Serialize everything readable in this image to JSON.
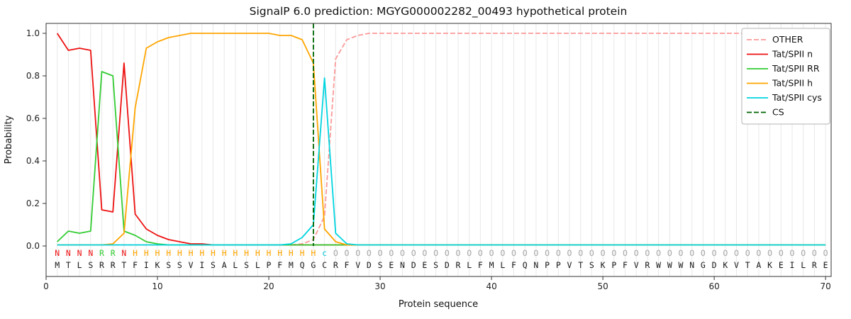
{
  "chart_data": {
    "type": "line",
    "title": "SignalP 6.0 prediction: MGYG000002282_00493 hypothetical protein",
    "xlabel": "Protein sequence",
    "ylabel": "Probability",
    "xlim": [
      0,
      70.5
    ],
    "ylim": [
      0.0,
      1.0
    ],
    "x_ticks": [
      0,
      10,
      20,
      30,
      40,
      50,
      60,
      70
    ],
    "y_ticks": [
      0.0,
      0.2,
      0.4,
      0.6,
      0.8,
      1.0
    ],
    "grid": "vertical-line-per-residue",
    "legend_position": "upper right",
    "cs_position": 24,
    "cs_line": {
      "name": "CS",
      "color": "#006400",
      "dash": "7 3"
    },
    "series": [
      {
        "name": "OTHER",
        "color": "#fb9a99",
        "dash": "7 3",
        "values": [
          0.005,
          0.005,
          0.005,
          0.005,
          0.005,
          0.005,
          0.005,
          0.005,
          0.005,
          0.005,
          0.005,
          0.005,
          0.005,
          0.005,
          0.005,
          0.005,
          0.005,
          0.005,
          0.005,
          0.005,
          0.005,
          0.005,
          0.01,
          0.03,
          0.14,
          0.88,
          0.97,
          0.99,
          1.0,
          1.0,
          1.0,
          1.0,
          1.0,
          1.0,
          1.0,
          1.0,
          1.0,
          1.0,
          1.0,
          1.0,
          1.0,
          1.0,
          1.0,
          1.0,
          1.0,
          1.0,
          1.0,
          1.0,
          1.0,
          1.0,
          1.0,
          1.0,
          1.0,
          1.0,
          1.0,
          1.0,
          1.0,
          1.0,
          1.0,
          1.0,
          1.0,
          1.0,
          1.0,
          1.0,
          1.0,
          1.0,
          1.0,
          1.0,
          1.0,
          1.0
        ]
      },
      {
        "name": "Tat/SPII n",
        "color": "#ee1111",
        "dash": null,
        "values": [
          1.0,
          0.92,
          0.93,
          0.92,
          0.17,
          0.16,
          0.86,
          0.15,
          0.08,
          0.05,
          0.03,
          0.02,
          0.01,
          0.01,
          0.005,
          0.005,
          0.005,
          0.005,
          0.005,
          0.005,
          0.005,
          0.005,
          0.005,
          0.005,
          0.005,
          0.005,
          0.005,
          0.005,
          0.005,
          0.005,
          0.005,
          0.005,
          0.005,
          0.005,
          0.005,
          0.005,
          0.005,
          0.005,
          0.005,
          0.005,
          0.005,
          0.005,
          0.005,
          0.005,
          0.005,
          0.005,
          0.005,
          0.005,
          0.005,
          0.005,
          0.005,
          0.005,
          0.005,
          0.005,
          0.005,
          0.005,
          0.005,
          0.005,
          0.005,
          0.005,
          0.005,
          0.005,
          0.005,
          0.005,
          0.005,
          0.005,
          0.005,
          0.005,
          0.005,
          0.005
        ]
      },
      {
        "name": "Tat/SPII RR",
        "color": "#33cc33",
        "dash": null,
        "values": [
          0.02,
          0.07,
          0.06,
          0.07,
          0.82,
          0.8,
          0.07,
          0.05,
          0.02,
          0.01,
          0.005,
          0.005,
          0.005,
          0.005,
          0.005,
          0.005,
          0.005,
          0.005,
          0.005,
          0.005,
          0.005,
          0.005,
          0.005,
          0.005,
          0.005,
          0.005,
          0.005,
          0.005,
          0.005,
          0.005,
          0.005,
          0.005,
          0.005,
          0.005,
          0.005,
          0.005,
          0.005,
          0.005,
          0.005,
          0.005,
          0.005,
          0.005,
          0.005,
          0.005,
          0.005,
          0.005,
          0.005,
          0.005,
          0.005,
          0.005,
          0.005,
          0.005,
          0.005,
          0.005,
          0.005,
          0.005,
          0.005,
          0.005,
          0.005,
          0.005,
          0.005,
          0.005,
          0.005,
          0.005,
          0.005,
          0.005,
          0.005,
          0.005,
          0.005,
          0.005
        ]
      },
      {
        "name": "Tat/SPII h",
        "color": "#ffa500",
        "dash": null,
        "values": [
          0.005,
          0.005,
          0.005,
          0.005,
          0.005,
          0.01,
          0.06,
          0.65,
          0.93,
          0.96,
          0.98,
          0.99,
          1.0,
          1.0,
          1.0,
          1.0,
          1.0,
          1.0,
          1.0,
          1.0,
          0.99,
          0.99,
          0.97,
          0.86,
          0.08,
          0.02,
          0.005,
          0.005,
          0.005,
          0.005,
          0.005,
          0.005,
          0.005,
          0.005,
          0.005,
          0.005,
          0.005,
          0.005,
          0.005,
          0.005,
          0.005,
          0.005,
          0.005,
          0.005,
          0.005,
          0.005,
          0.005,
          0.005,
          0.005,
          0.005,
          0.005,
          0.005,
          0.005,
          0.005,
          0.005,
          0.005,
          0.005,
          0.005,
          0.005,
          0.005,
          0.005,
          0.005,
          0.005,
          0.005,
          0.005,
          0.005,
          0.005,
          0.005,
          0.005,
          0.005
        ]
      },
      {
        "name": "Tat/SPII cys",
        "color": "#00d5e0",
        "dash": null,
        "values": [
          0.005,
          0.005,
          0.005,
          0.005,
          0.005,
          0.005,
          0.005,
          0.005,
          0.005,
          0.005,
          0.005,
          0.005,
          0.005,
          0.005,
          0.005,
          0.005,
          0.005,
          0.005,
          0.005,
          0.005,
          0.005,
          0.01,
          0.04,
          0.1,
          0.79,
          0.06,
          0.01,
          0.005,
          0.005,
          0.005,
          0.005,
          0.005,
          0.005,
          0.005,
          0.005,
          0.005,
          0.005,
          0.005,
          0.005,
          0.005,
          0.005,
          0.005,
          0.005,
          0.005,
          0.005,
          0.005,
          0.005,
          0.005,
          0.005,
          0.005,
          0.005,
          0.005,
          0.005,
          0.005,
          0.005,
          0.005,
          0.005,
          0.005,
          0.005,
          0.005,
          0.005,
          0.005,
          0.005,
          0.005,
          0.005,
          0.005,
          0.005,
          0.005,
          0.005,
          0.005
        ]
      }
    ],
    "sequence": [
      "M",
      "T",
      "L",
      "S",
      "R",
      "R",
      "T",
      "F",
      "I",
      "K",
      "S",
      "S",
      "V",
      "I",
      "S",
      "A",
      "L",
      "S",
      "L",
      "P",
      "F",
      "M",
      "Q",
      "G",
      "C",
      "R",
      "F",
      "V",
      "D",
      "S",
      "E",
      "N",
      "D",
      "E",
      "S",
      "D",
      "R",
      "L",
      "F",
      "M",
      "L",
      "F",
      "Q",
      "N",
      "P",
      "P",
      "V",
      "T",
      "S",
      "K",
      "P",
      "F",
      "V",
      "R",
      "W",
      "W",
      "W",
      "N",
      "G",
      "D",
      "K",
      "V",
      "T",
      "A",
      "K",
      "E",
      "I",
      "L",
      "R",
      "E"
    ],
    "residue_labels": [
      "N",
      "N",
      "N",
      "N",
      "R",
      "R",
      "N",
      "H",
      "H",
      "H",
      "H",
      "H",
      "H",
      "H",
      "H",
      "H",
      "H",
      "H",
      "H",
      "H",
      "H",
      "H",
      "H",
      "H",
      "c",
      "O",
      "O",
      "O",
      "O",
      "O",
      "O",
      "O",
      "O",
      "O",
      "O",
      "O",
      "O",
      "O",
      "O",
      "O",
      "O",
      "O",
      "O",
      "O",
      "O",
      "O",
      "O",
      "O",
      "O",
      "O",
      "O",
      "O",
      "O",
      "O",
      "O",
      "O",
      "O",
      "O",
      "O",
      "O",
      "O",
      "O",
      "O",
      "O",
      "O",
      "O",
      "O",
      "O",
      "O",
      "O"
    ],
    "label_colors": {
      "N": "#ee1111",
      "R": "#33cc33",
      "H": "#ffa500",
      "c": "#00c8d8",
      "O": "#a6a6a6"
    },
    "sequence_color": "#1a1a1a"
  }
}
